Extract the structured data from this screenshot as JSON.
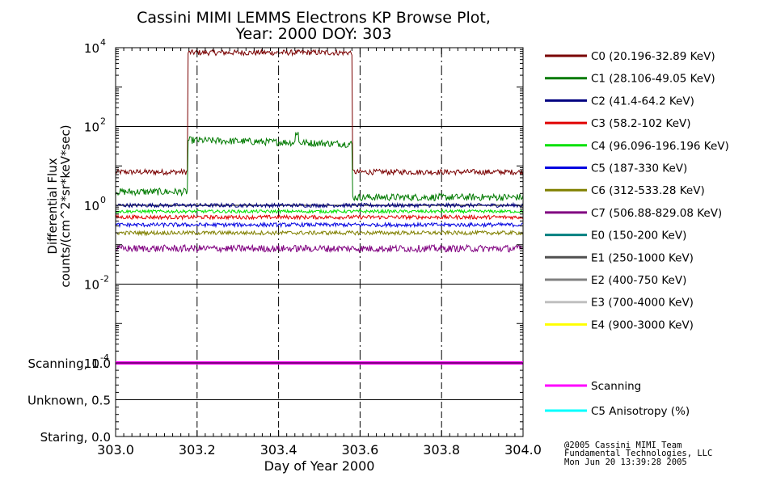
{
  "chart_data": [
    {
      "type": "line",
      "title_line1": "Cassini MIMI LEMMS Electrons KP Browse Plot,",
      "title_line2": "Year: 2000 DOY: 303",
      "ylabel_line1": "Differential Flux",
      "ylabel_line2": "counts/(cm^2*sr*keV*sec)",
      "yscale": "log",
      "ylim": [
        0.0001,
        10000
      ],
      "y_ticks": [
        {
          "value": 0.0001,
          "base": "10",
          "exp": "-4"
        },
        {
          "value": 0.01,
          "base": "10",
          "exp": "-2"
        },
        {
          "value": 1,
          "base": "10",
          "exp": "0"
        },
        {
          "value": 100,
          "base": "10",
          "exp": "2"
        },
        {
          "value": 10000,
          "base": "10",
          "exp": "4"
        }
      ],
      "xlim": [
        303.0,
        304.0
      ],
      "grid": "dashed vertical lines at major x ticks, solid horizontal lines at y = 1e-2, 1, 1e2",
      "legend_placement": "right",
      "series": [
        {
          "name": "C0 (20.196-32.89 KeV)",
          "color": "#7a0000",
          "baseline": 7,
          "elevated": 7500,
          "elevated_range": [
            303.178,
            303.58
          ],
          "noise": 0.07
        },
        {
          "name": "C1 (28.106-49.05 KeV)",
          "color": "#007a00",
          "baseline": 2.2,
          "after_baseline": 1.6,
          "elevated": 45,
          "elevated_end": 36,
          "elevated_range": [
            303.178,
            303.58
          ],
          "spike_at": 303.445,
          "spike_value": 70,
          "noise": 0.09
        },
        {
          "name": "C2 (41.4-64.2 KeV)",
          "color": "#000080",
          "baseline": 1.0,
          "noise": 0.05
        },
        {
          "name": "C3 (58.2-102 KeV)",
          "color": "#e00000",
          "baseline": 0.5,
          "noise": 0.05
        },
        {
          "name": "C4 (96.096-196.196 KeV)",
          "color": "#00e000",
          "baseline": 0.7,
          "noise": 0.04
        },
        {
          "name": "C5 (187-330 KeV)",
          "color": "#0000e0",
          "baseline": 0.32,
          "noise": 0.05
        },
        {
          "name": "C6 (312-533.28 KeV)",
          "color": "#808000",
          "baseline": 0.2,
          "noise": 0.05
        },
        {
          "name": "C7 (506.88-829.08 KeV)",
          "color": "#800080",
          "baseline": 0.08,
          "noise": 0.09
        },
        {
          "name": "E0 (150-200 KeV)",
          "color": "#008080"
        },
        {
          "name": "E1 (250-1000 KeV)",
          "color": "#505050"
        },
        {
          "name": "E2 (400-750 KeV)",
          "color": "#808080"
        },
        {
          "name": "E3 (700-4000 KeV)",
          "color": "#c0c0c0"
        },
        {
          "name": "E4 (900-3000 KeV)",
          "color": "#ffff00"
        }
      ]
    },
    {
      "type": "line",
      "ylim": [
        0.0,
        1.0
      ],
      "y_ticks": [
        {
          "value": 1.0,
          "label": "Scanning, 1.0"
        },
        {
          "value": 0.5,
          "label": "Unknown, 0.5"
        },
        {
          "value": 0.0,
          "label": "Staring, 0.0"
        }
      ],
      "xlim": [
        303.0,
        304.0
      ],
      "xlabel": "Day of Year 2000",
      "x_ticks": [
        "303.0",
        "303.2",
        "303.4",
        "303.6",
        "303.8",
        "304.0"
      ],
      "legend_placement": "right",
      "series": [
        {
          "name": "Scanning",
          "color": "#ff00ff",
          "value": 1.0
        },
        {
          "name": "C5 Anisotropy (%)",
          "color": "#00ffff"
        }
      ]
    }
  ],
  "footer": {
    "line1": "@2005 Cassini MIMI Team",
    "line2": "Fundamental Technologies, LLC",
    "line3": "Mon Jun 20 13:39:28 2005"
  }
}
